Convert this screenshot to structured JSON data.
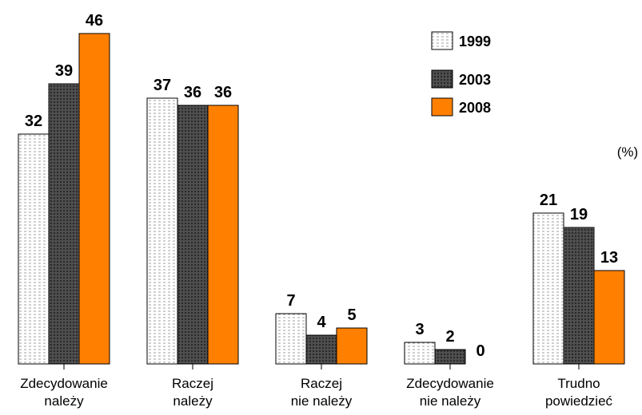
{
  "chart_data": {
    "type": "bar",
    "categories": [
      "Zdecydowanie należy",
      "Raczej należy",
      "Raczej nie należy",
      "Zdecydowanie nie należy",
      "Trudno powiedzieć"
    ],
    "series": [
      {
        "name": "1999",
        "color": "#ffffff",
        "values": [
          32,
          37,
          7,
          3,
          21
        ]
      },
      {
        "name": "2003",
        "color": "#555555",
        "values": [
          39,
          36,
          4,
          2,
          19
        ]
      },
      {
        "name": "2008",
        "color": "#ff8000",
        "values": [
          46,
          36,
          5,
          0,
          13
        ]
      }
    ],
    "unit": "(%)",
    "ylim": [
      0,
      50
    ],
    "legend": "top-right"
  }
}
